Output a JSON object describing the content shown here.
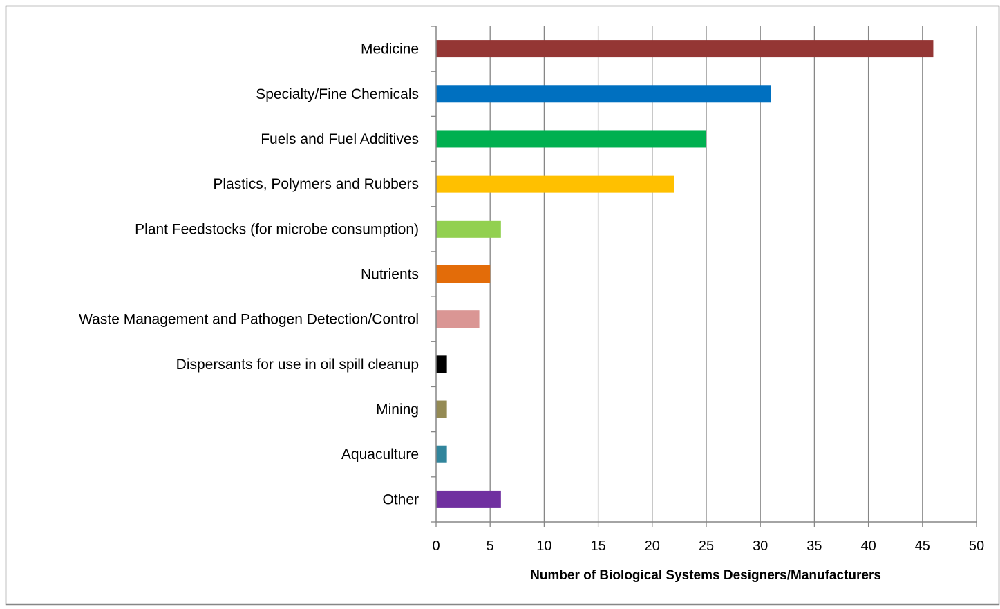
{
  "chart_data": {
    "type": "bar",
    "orientation": "horizontal",
    "categories": [
      "Medicine",
      "Specialty/Fine Chemicals",
      "Fuels and Fuel Additives",
      "Plastics, Polymers and Rubbers",
      "Plant Feedstocks (for microbe consumption)",
      "Nutrients",
      "Waste Management and Pathogen Detection/Control",
      "Dispersants for use in oil spill cleanup",
      "Mining",
      "Aquaculture",
      "Other"
    ],
    "values": [
      46,
      31,
      25,
      22,
      6,
      5,
      4,
      1,
      1,
      1,
      6
    ],
    "colors": [
      "#943634",
      "#0070c0",
      "#00b050",
      "#ffc000",
      "#92d050",
      "#e36c09",
      "#da9694",
      "#000000",
      "#948a54",
      "#31859c",
      "#7030a0"
    ],
    "title": "",
    "xlabel": "Number of Biological Systems Designers/Manufacturers",
    "ylabel": "",
    "xlim": [
      0,
      50
    ],
    "xticks": [
      "0",
      "5",
      "10",
      "15",
      "20",
      "25",
      "30",
      "35",
      "40",
      "45",
      "50"
    ],
    "grid": "vertical",
    "legend": "none"
  }
}
